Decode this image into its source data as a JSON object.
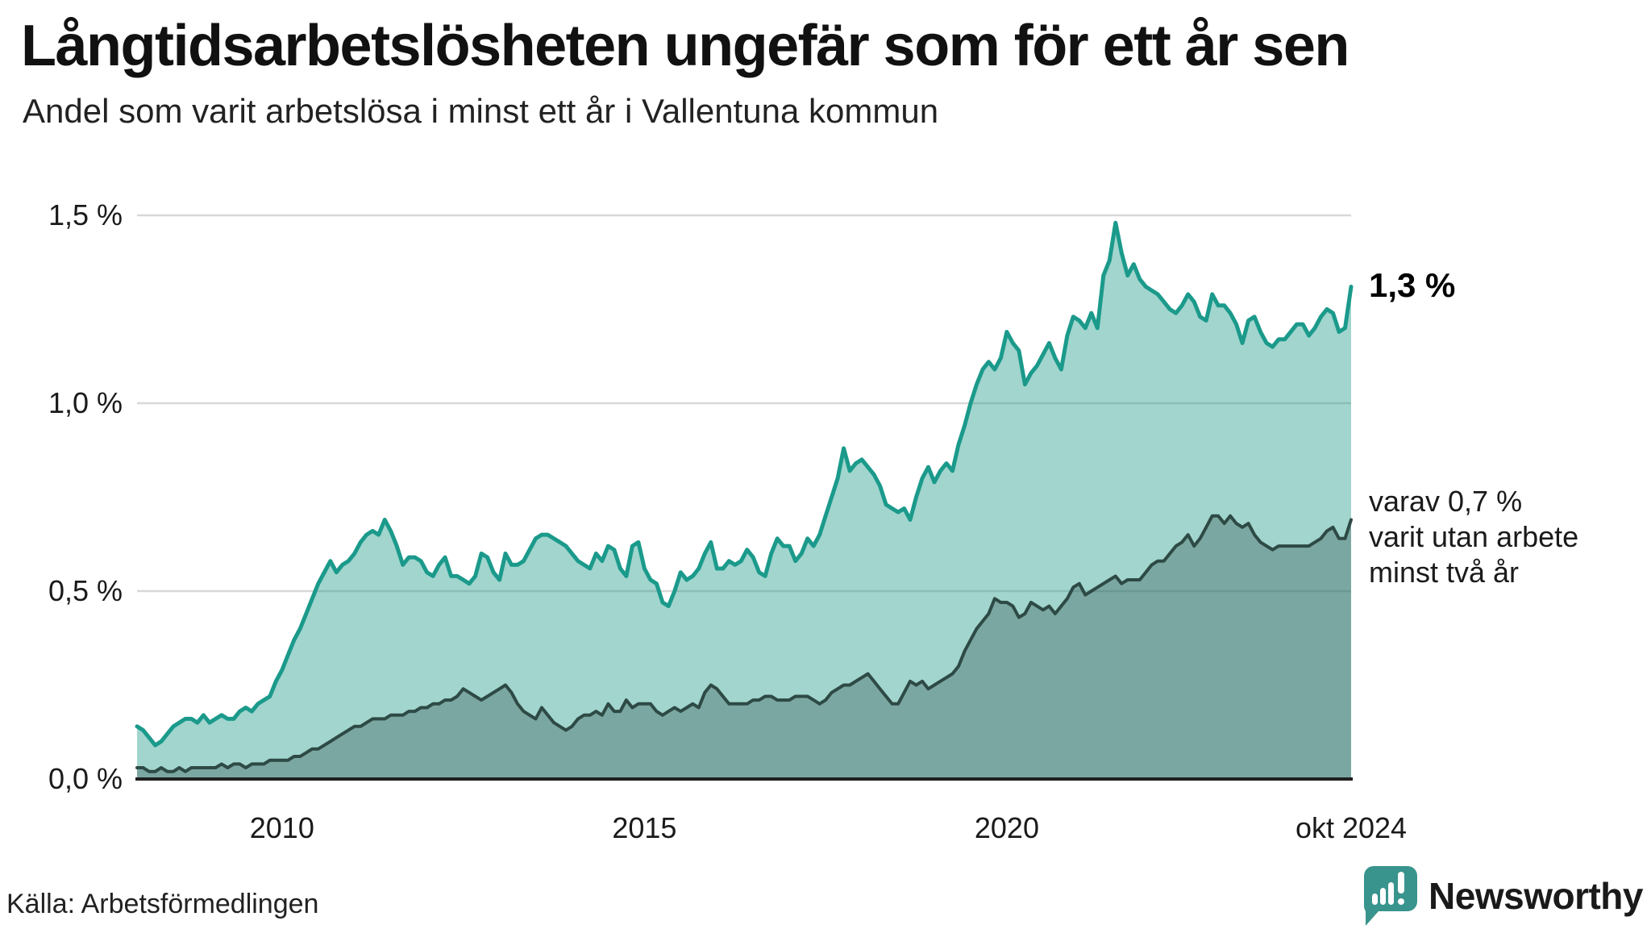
{
  "title": "Långtidsarbetslösheten ungefär som för ett år sen",
  "subtitle": "Andel som varit arbetslösa i minst ett år i Vallentuna kommun",
  "source": "Källa: Arbetsförmedlingen",
  "logo": {
    "name": "Newsworthy"
  },
  "annotations": {
    "latest_total": "1,3 %",
    "secondary_line1": "varav 0,7 %",
    "secondary_line2": "varit utan arbete",
    "secondary_line3": "minst två år"
  },
  "colors": {
    "line_total": "#1b9a8b",
    "fill_total": "rgba(31,154,139,0.42)",
    "line_two_years": "#2e4a45",
    "fill_two_years": "rgba(45,72,67,0.32)",
    "grid": "#d8d8d8",
    "baseline": "#1f1f1f",
    "text": "#1a1a1a",
    "logo": "#38948c"
  },
  "chart_data": {
    "type": "area",
    "unit": "%",
    "x_start": "2008-01",
    "x_end": "2024-10",
    "frequency": "monthly",
    "ylim": [
      0,
      1.5
    ],
    "grid": true,
    "y_ticks": [
      {
        "label": "1,5 %",
        "value": 1.5
      },
      {
        "label": "1,0 %",
        "value": 1.0
      },
      {
        "label": "0,5 %",
        "value": 0.5
      },
      {
        "label": "0,0 %",
        "value": 0.0
      }
    ],
    "x_ticks": [
      {
        "label": "2010",
        "t": 2010.0
      },
      {
        "label": "2015",
        "t": 2015.0
      },
      {
        "label": "2020",
        "t": 2020.0
      },
      {
        "label": "okt 2024",
        "t": 2024.75
      }
    ],
    "series": [
      {
        "name": "Andel arbetslösa minst ett år",
        "end_label": "1,3 %",
        "last_value": 1.31,
        "values": [
          0.14,
          0.13,
          0.11,
          0.09,
          0.1,
          0.12,
          0.14,
          0.15,
          0.16,
          0.16,
          0.15,
          0.17,
          0.15,
          0.16,
          0.17,
          0.16,
          0.16,
          0.18,
          0.19,
          0.18,
          0.2,
          0.21,
          0.22,
          0.26,
          0.29,
          0.33,
          0.37,
          0.4,
          0.44,
          0.48,
          0.52,
          0.55,
          0.58,
          0.55,
          0.57,
          0.58,
          0.6,
          0.63,
          0.65,
          0.66,
          0.65,
          0.69,
          0.66,
          0.62,
          0.57,
          0.59,
          0.59,
          0.58,
          0.55,
          0.54,
          0.57,
          0.59,
          0.54,
          0.54,
          0.53,
          0.52,
          0.54,
          0.6,
          0.59,
          0.55,
          0.53,
          0.6,
          0.57,
          0.57,
          0.58,
          0.61,
          0.64,
          0.65,
          0.65,
          0.64,
          0.63,
          0.62,
          0.6,
          0.58,
          0.57,
          0.56,
          0.6,
          0.58,
          0.62,
          0.61,
          0.56,
          0.54,
          0.62,
          0.63,
          0.56,
          0.53,
          0.52,
          0.47,
          0.46,
          0.5,
          0.55,
          0.53,
          0.54,
          0.56,
          0.6,
          0.63,
          0.56,
          0.56,
          0.58,
          0.57,
          0.58,
          0.61,
          0.59,
          0.55,
          0.54,
          0.6,
          0.64,
          0.62,
          0.62,
          0.58,
          0.6,
          0.64,
          0.62,
          0.65,
          0.7,
          0.75,
          0.8,
          0.88,
          0.82,
          0.84,
          0.85,
          0.83,
          0.81,
          0.78,
          0.73,
          0.72,
          0.71,
          0.72,
          0.69,
          0.75,
          0.8,
          0.83,
          0.79,
          0.82,
          0.84,
          0.82,
          0.89,
          0.94,
          1.0,
          1.05,
          1.09,
          1.11,
          1.09,
          1.12,
          1.19,
          1.16,
          1.14,
          1.05,
          1.08,
          1.1,
          1.13,
          1.16,
          1.12,
          1.09,
          1.18,
          1.23,
          1.22,
          1.2,
          1.24,
          1.2,
          1.34,
          1.38,
          1.48,
          1.4,
          1.34,
          1.37,
          1.33,
          1.31,
          1.3,
          1.29,
          1.27,
          1.25,
          1.24,
          1.26,
          1.29,
          1.27,
          1.23,
          1.22,
          1.29,
          1.26,
          1.26,
          1.24,
          1.21,
          1.16,
          1.22,
          1.23,
          1.19,
          1.16,
          1.15,
          1.17,
          1.17,
          1.19,
          1.21,
          1.21,
          1.18,
          1.2,
          1.23,
          1.25,
          1.24,
          1.19,
          1.2,
          1.31
        ]
      },
      {
        "name": "Varav utan arbete minst två år",
        "end_label": "varav 0,7 %",
        "last_value": 0.69,
        "values": [
          0.03,
          0.03,
          0.02,
          0.02,
          0.03,
          0.02,
          0.02,
          0.03,
          0.02,
          0.03,
          0.03,
          0.03,
          0.03,
          0.03,
          0.04,
          0.03,
          0.04,
          0.04,
          0.03,
          0.04,
          0.04,
          0.04,
          0.05,
          0.05,
          0.05,
          0.05,
          0.06,
          0.06,
          0.07,
          0.08,
          0.08,
          0.09,
          0.1,
          0.11,
          0.12,
          0.13,
          0.14,
          0.14,
          0.15,
          0.16,
          0.16,
          0.16,
          0.17,
          0.17,
          0.17,
          0.18,
          0.18,
          0.19,
          0.19,
          0.2,
          0.2,
          0.21,
          0.21,
          0.22,
          0.24,
          0.23,
          0.22,
          0.21,
          0.22,
          0.23,
          0.24,
          0.25,
          0.23,
          0.2,
          0.18,
          0.17,
          0.16,
          0.19,
          0.17,
          0.15,
          0.14,
          0.13,
          0.14,
          0.16,
          0.17,
          0.17,
          0.18,
          0.17,
          0.2,
          0.18,
          0.18,
          0.21,
          0.19,
          0.2,
          0.2,
          0.2,
          0.18,
          0.17,
          0.18,
          0.19,
          0.18,
          0.19,
          0.2,
          0.19,
          0.23,
          0.25,
          0.24,
          0.22,
          0.2,
          0.2,
          0.2,
          0.2,
          0.21,
          0.21,
          0.22,
          0.22,
          0.21,
          0.21,
          0.21,
          0.22,
          0.22,
          0.22,
          0.21,
          0.2,
          0.21,
          0.23,
          0.24,
          0.25,
          0.25,
          0.26,
          0.27,
          0.28,
          0.26,
          0.24,
          0.22,
          0.2,
          0.2,
          0.23,
          0.26,
          0.25,
          0.26,
          0.24,
          0.25,
          0.26,
          0.27,
          0.28,
          0.3,
          0.34,
          0.37,
          0.4,
          0.42,
          0.44,
          0.48,
          0.47,
          0.47,
          0.46,
          0.43,
          0.44,
          0.47,
          0.46,
          0.45,
          0.46,
          0.44,
          0.46,
          0.48,
          0.51,
          0.52,
          0.49,
          0.5,
          0.51,
          0.52,
          0.53,
          0.54,
          0.52,
          0.53,
          0.53,
          0.53,
          0.55,
          0.57,
          0.58,
          0.58,
          0.6,
          0.62,
          0.63,
          0.65,
          0.62,
          0.64,
          0.67,
          0.7,
          0.7,
          0.68,
          0.7,
          0.68,
          0.67,
          0.68,
          0.65,
          0.63,
          0.62,
          0.61,
          0.62,
          0.62,
          0.62,
          0.62,
          0.62,
          0.62,
          0.63,
          0.64,
          0.66,
          0.67,
          0.64,
          0.64,
          0.69
        ]
      }
    ]
  }
}
